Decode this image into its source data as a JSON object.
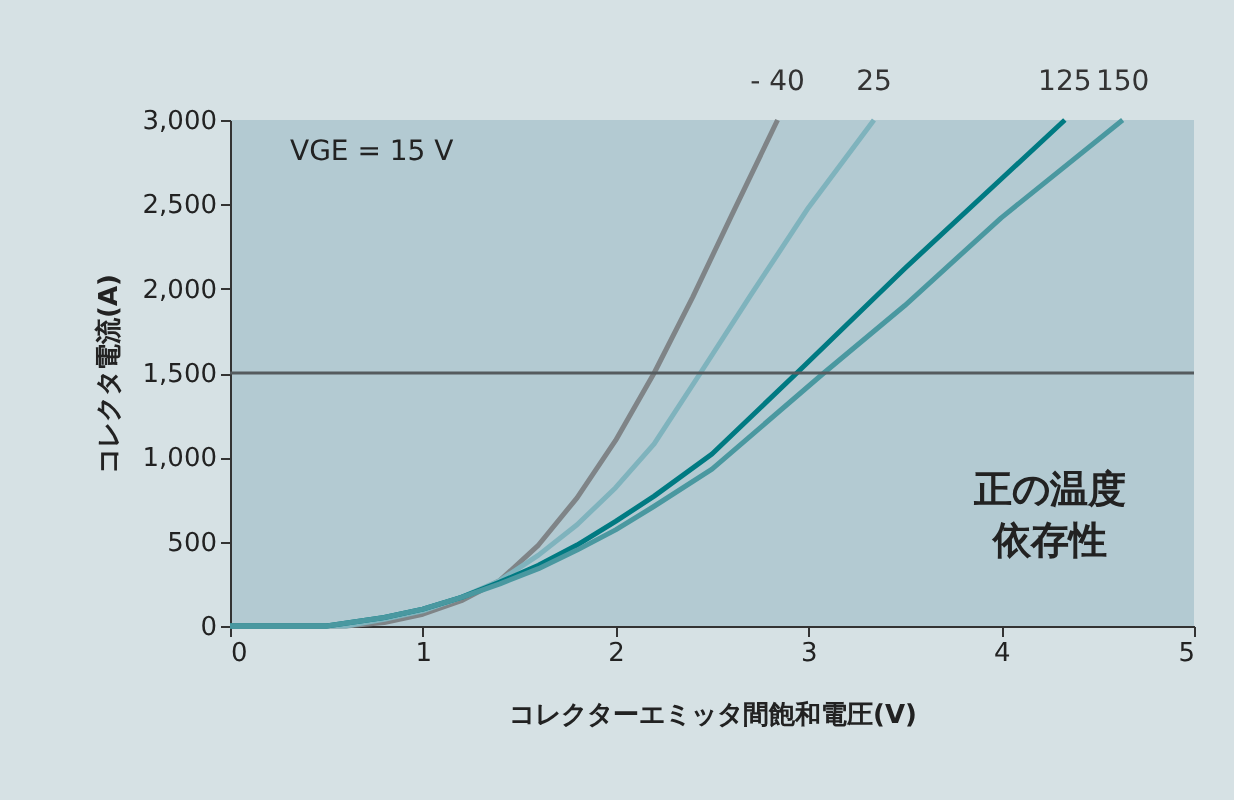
{
  "chart_data": {
    "type": "line",
    "xlabel": "コレクターエミッタ間飽和電圧(V)",
    "ylabel": "コレクタ電流(A)",
    "xlim": [
      0,
      5
    ],
    "xticks": [
      0,
      1,
      2,
      3,
      4,
      5
    ],
    "ylim": [
      0,
      3000
    ],
    "yticks": [
      0,
      {
        "value": 500,
        "label": "500"
      },
      {
        "value": 1000,
        "label": "1,000"
      },
      {
        "value": 1500,
        "label": "1,500"
      },
      {
        "value": 2000,
        "label": "2,000"
      },
      {
        "value": 2500,
        "label": "2,500"
      },
      {
        "value": 3000,
        "label": "3,000"
      }
    ],
    "grid": false,
    "marker": "none",
    "line_style": "solid",
    "series": [
      {
        "name": "- 40",
        "color": "#7f8487",
        "x": [
          0,
          0.6,
          0.8,
          1.0,
          1.2,
          1.4,
          1.6,
          1.8,
          2.0,
          2.2,
          2.4,
          2.6,
          2.84
        ],
        "values": [
          0,
          0,
          20,
          70,
          150,
          270,
          480,
          760,
          1100,
          1500,
          1950,
          2430,
          3000
        ]
      },
      {
        "name": "25",
        "color": "#7fb3bd",
        "x": [
          0,
          0.6,
          0.8,
          1.0,
          1.2,
          1.4,
          1.6,
          1.8,
          2.0,
          2.2,
          2.44,
          2.7,
          3.0,
          3.34
        ],
        "values": [
          0,
          0,
          40,
          90,
          170,
          270,
          420,
          600,
          820,
          1080,
          1500,
          1960,
          2480,
          3000
        ]
      },
      {
        "name": "125",
        "color": "#007a82",
        "x": [
          0,
          0.5,
          0.8,
          1.0,
          1.2,
          1.4,
          1.6,
          1.8,
          2.0,
          2.2,
          2.5,
          2.94,
          3.5,
          4.0,
          4.33
        ],
        "values": [
          0,
          0,
          50,
          100,
          170,
          260,
          360,
          480,
          620,
          770,
          1020,
          1500,
          2120,
          2650,
          3000
        ]
      },
      {
        "name": "150",
        "color": "#4a98a0",
        "x": [
          0,
          0.5,
          0.8,
          1.0,
          1.2,
          1.4,
          1.6,
          1.8,
          2.0,
          2.2,
          2.5,
          3.08,
          3.5,
          4.0,
          4.63
        ],
        "values": [
          0,
          0,
          50,
          100,
          170,
          250,
          340,
          450,
          570,
          710,
          930,
          1500,
          1900,
          2420,
          3000
        ]
      }
    ],
    "ref_lines": [
      {
        "axis": "y",
        "value": 1500,
        "color": "#555b5e"
      }
    ],
    "annotations": [
      "VGE = 15 V",
      "正の温度依存性"
    ]
  }
}
